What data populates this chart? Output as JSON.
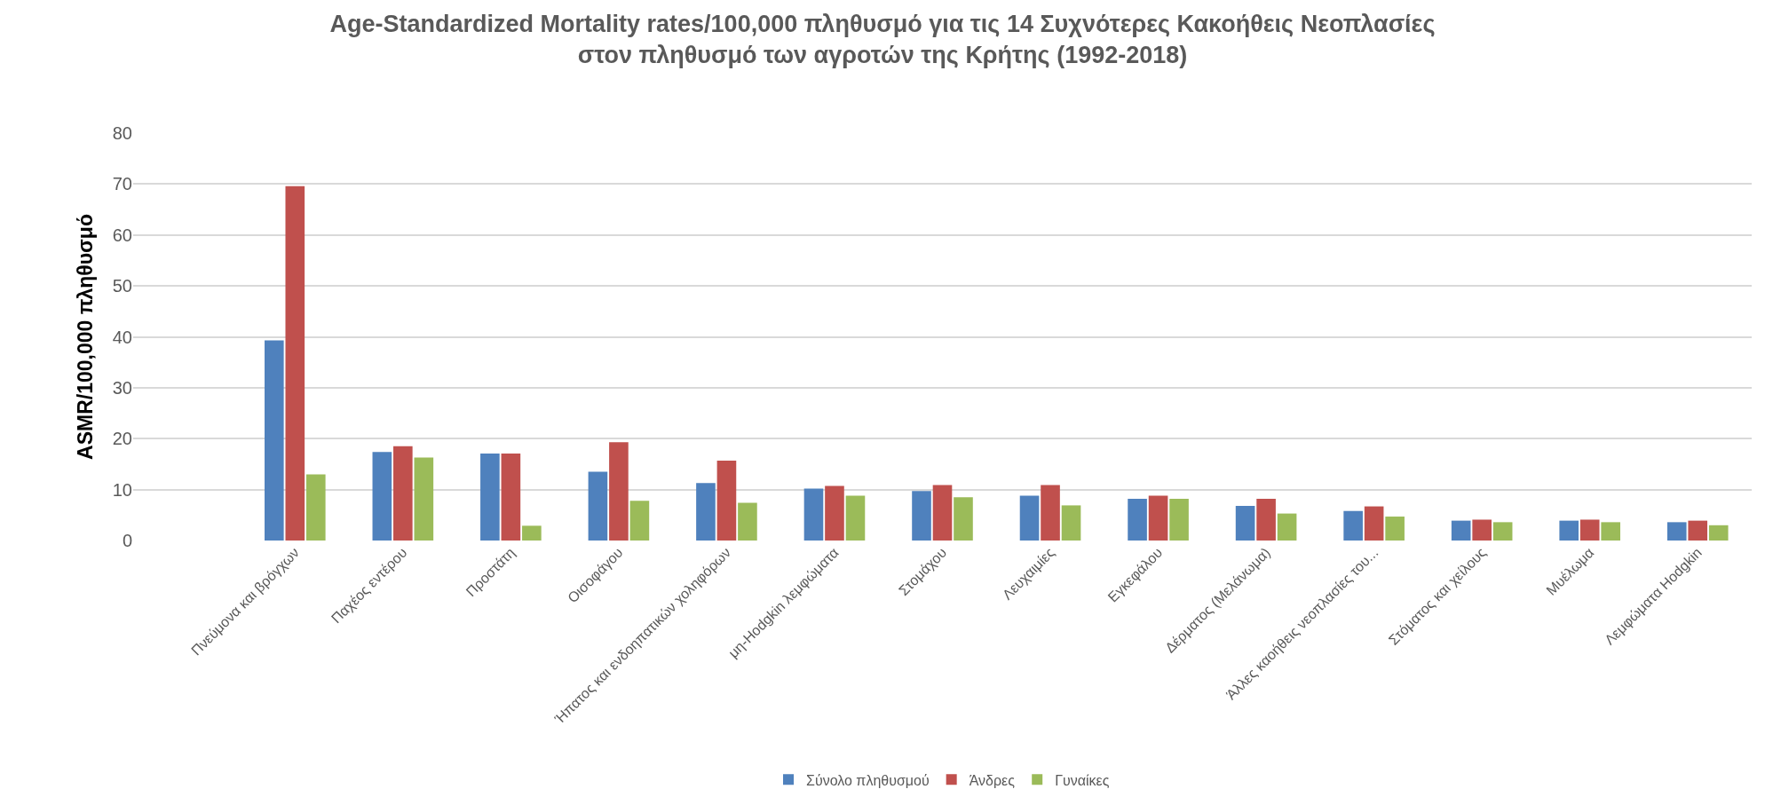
{
  "chart_data": {
    "type": "bar",
    "title": "Age-Standardized Mortality rates/100,000 πληθυσμό για τις 14 Συχνότερες Κακοήθεις Νεοπλασίες\nστον πληθυσμό των αγροτών της Κρήτης (1992-2018)",
    "ylabel": "ASMR/100,000 πληθυσμό",
    "categories": [
      null,
      "Πνεύμονα και βρόγχων",
      "Παχέος εντέρου",
      "Προστάτη",
      "Οισοφάγου",
      "Ήπατος και ενδοηπατικών χοληφόρων",
      "μη-Hodgkin λεμφώματα",
      "Στομάχου",
      "Λευχαιμίες",
      "Εγκεφάλου",
      "Δέρματος (Μελάνωμα)",
      "Άλλες καοήθεις νεοπλασίες του...",
      "Στόματος και χείλους",
      "Μυέλωμα",
      "Λεμφώματα Hodgkin"
    ],
    "series": [
      {
        "name": "Σύνολο πληθυσμού",
        "color": "#4f81bd",
        "values": [
          null,
          39.3,
          17.4,
          17.1,
          13.5,
          11.3,
          10.2,
          9.7,
          8.8,
          8.2,
          6.8,
          5.8,
          3.9,
          3.9,
          3.6
        ]
      },
      {
        "name": "Άνδρες",
        "color": "#c0504d",
        "values": [
          null,
          69.6,
          18.5,
          17.1,
          19.3,
          15.7,
          10.7,
          10.9,
          10.9,
          8.8,
          8.2,
          6.7,
          4.1,
          4.1,
          3.9
        ]
      },
      {
        "name": "Γυναίκες",
        "color": "#9bbb59",
        "values": [
          null,
          13.0,
          16.3,
          2.9,
          7.8,
          7.4,
          8.8,
          8.5,
          6.9,
          8.2,
          5.3,
          4.7,
          3.6,
          3.6,
          3.0
        ]
      }
    ],
    "ylim": [
      0,
      80
    ],
    "yticks": [
      0,
      10,
      20,
      30,
      40,
      50,
      60,
      70,
      80
    ],
    "grid": "y",
    "legend": "bottom"
  }
}
